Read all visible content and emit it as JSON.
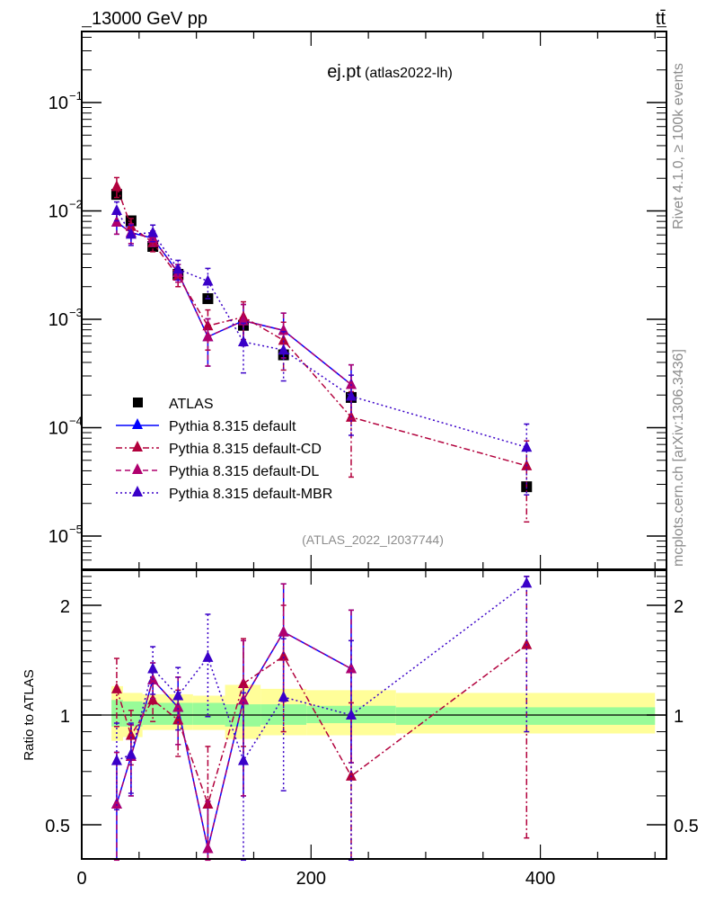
{
  "header": {
    "energy_label": "13000 GeV pp",
    "process_label": "tt̄"
  },
  "side_labels": {
    "rivet": "Rivet 4.1.0, ≥ 100k events",
    "source": "mcplots.cern.ch [arXiv:1306.3436]"
  },
  "chart_data": [
    {
      "type": "scatter",
      "panel": "main",
      "title": "ej.pt",
      "subtitle": "(atlas2022-lh)",
      "analysis_id": "(ATLAS_2022_I2037744)",
      "xlabel": "",
      "ylabel": "",
      "yscale": "log",
      "xlim": [
        0,
        510
      ],
      "ylim": [
        5e-06,
        0.5
      ],
      "yticks": [
        {
          "value": 0.1,
          "label_base": "10",
          "label_exp": "−1"
        },
        {
          "value": 0.01,
          "label_base": "10",
          "label_exp": "−2"
        },
        {
          "value": 0.001,
          "label_base": "10",
          "label_exp": "−3"
        },
        {
          "value": 0.0001,
          "label_base": "10",
          "label_exp": "−4"
        },
        {
          "value": 1e-05,
          "label_base": "10",
          "label_exp": "−5"
        }
      ],
      "legend_position": "bottom-left",
      "x": [
        30.5,
        43,
        62,
        84,
        110,
        141,
        176,
        235,
        388
      ],
      "series": [
        {
          "name": "ATLAS",
          "color": "#000000",
          "marker": "square",
          "line": "none",
          "values": [
            0.0142,
            0.0081,
            0.0047,
            0.0026,
            0.00155,
            0.00088,
            0.00047,
            0.00019,
            2.85e-05
          ]
        },
        {
          "name": "Pythia 8.315 default",
          "color": "#0000ff",
          "marker": "triangle",
          "line": "solid",
          "values": [
            0.0079,
            0.0063,
            0.0056,
            0.0027,
            0.00069,
            0.00097,
            0.00079,
            0.00025,
            null
          ],
          "errors": [
            0.0018,
            0.0013,
            0.0009,
            0.0005,
            0.00032,
            0.0004,
            0.00035,
            0.00013,
            null
          ]
        },
        {
          "name": "Pythia 8.315 default-CD",
          "color": "#b2003c",
          "marker": "triangle",
          "line": "dashdot",
          "values": [
            0.0168,
            0.0072,
            0.0051,
            0.0025,
            0.00087,
            0.00105,
            0.00064,
            0.000125,
            4.45e-05
          ],
          "errors": [
            0.0035,
            0.0013,
            0.0009,
            0.0005,
            0.00035,
            0.0004,
            0.0003,
            9e-05,
            3.1e-05
          ]
        },
        {
          "name": "Pythia 8.315 default-DL",
          "color": "#b0006e",
          "marker": "triangle",
          "line": "dashed",
          "values": [
            0.0079,
            0.0063,
            0.0056,
            0.0027,
            0.00069,
            0.00097,
            0.00079,
            0.00025,
            null
          ],
          "errors": [
            0.0018,
            0.0013,
            0.0009,
            0.0005,
            0.00032,
            0.0004,
            0.00035,
            0.00013,
            null
          ]
        },
        {
          "name": "Pythia 8.315 default-MBR",
          "color": "#3a00c8",
          "marker": "triangle",
          "line": "dotted",
          "values": [
            0.0101,
            0.0061,
            0.0063,
            0.0029,
            0.00225,
            0.00062,
            0.00052,
            0.000195,
            6.6e-05
          ],
          "errors": [
            0.002,
            0.0013,
            0.0011,
            0.0006,
            0.0007,
            0.0003,
            0.00025,
            0.00011,
            4.2e-05
          ]
        }
      ]
    },
    {
      "type": "scatter",
      "panel": "ratio",
      "xlabel": "",
      "ylabel": "Ratio to ATLAS",
      "yscale": "log",
      "xlim": [
        0,
        510
      ],
      "ylim": [
        0.4,
        2.4
      ],
      "yticks": [
        {
          "value": 0.5,
          "label": "0.5"
        },
        {
          "value": 1,
          "label": "1"
        },
        {
          "value": 2,
          "label": "2"
        }
      ],
      "xticks": [
        {
          "value": 0,
          "label": "0"
        },
        {
          "value": 200,
          "label": "200"
        },
        {
          "value": 400,
          "label": "400"
        }
      ],
      "bands": {
        "edges": [
          26,
          36,
          53,
          97,
          125,
          156,
          196,
          274,
          500
        ],
        "inner_color": "#98fb98",
        "outer_color": "#fffe99",
        "inner": [
          [
            0.93,
            1.1
          ],
          [
            0.93,
            1.09
          ],
          [
            0.94,
            1.08
          ],
          [
            0.94,
            1.08
          ],
          [
            0.93,
            1.07
          ],
          [
            0.94,
            1.07
          ],
          [
            0.95,
            1.06
          ],
          [
            0.94,
            1.05
          ],
          [
            0.9,
            1.13
          ]
        ],
        "outer": [
          [
            0.85,
            1.2
          ],
          [
            0.87,
            1.15
          ],
          [
            0.91,
            1.14
          ],
          [
            0.91,
            1.13
          ],
          [
            0.86,
            1.21
          ],
          [
            0.88,
            1.18
          ],
          [
            0.88,
            1.17
          ],
          [
            0.89,
            1.15
          ],
          [
            0.78,
            1.28
          ]
        ]
      },
      "x": [
        30.5,
        43,
        62,
        84,
        110,
        141,
        176,
        235,
        388
      ],
      "series": [
        {
          "name": "Pythia 8.315 default",
          "color": "#0000ff",
          "line": "solid",
          "values": [
            0.57,
            0.77,
            1.25,
            1.05,
            0.43,
            1.1,
            1.69,
            1.34,
            null
          ],
          "errors": [
            0.22,
            0.17,
            0.14,
            0.22,
            0.15,
            0.5,
            0.6,
            0.6,
            null
          ]
        },
        {
          "name": "Pythia 8.315 default-CD",
          "color": "#b2003c",
          "line": "dashdot",
          "values": [
            1.18,
            0.88,
            1.1,
            0.97,
            0.57,
            1.22,
            1.45,
            0.68,
            1.56
          ],
          "errors": [
            0.25,
            0.15,
            0.14,
            0.2,
            0.25,
            0.4,
            0.55,
            0.4,
            1.1
          ]
        },
        {
          "name": "Pythia 8.315 default-DL",
          "color": "#b0006e",
          "line": "dashed",
          "values": [
            0.57,
            0.77,
            1.25,
            1.05,
            0.43,
            1.1,
            1.69,
            1.34,
            null
          ],
          "errors": [
            0.22,
            0.17,
            0.14,
            0.22,
            0.15,
            0.5,
            0.6,
            0.6,
            null
          ]
        },
        {
          "name": "Pythia 8.315 default-MBR",
          "color": "#3a00c8",
          "line": "dotted",
          "values": [
            0.75,
            0.78,
            1.34,
            1.13,
            1.44,
            0.75,
            1.12,
            1.0,
            2.3
          ],
          "errors": [
            0.2,
            0.17,
            0.2,
            0.22,
            0.45,
            0.4,
            0.5,
            0.6,
            1.4
          ]
        }
      ]
    }
  ]
}
